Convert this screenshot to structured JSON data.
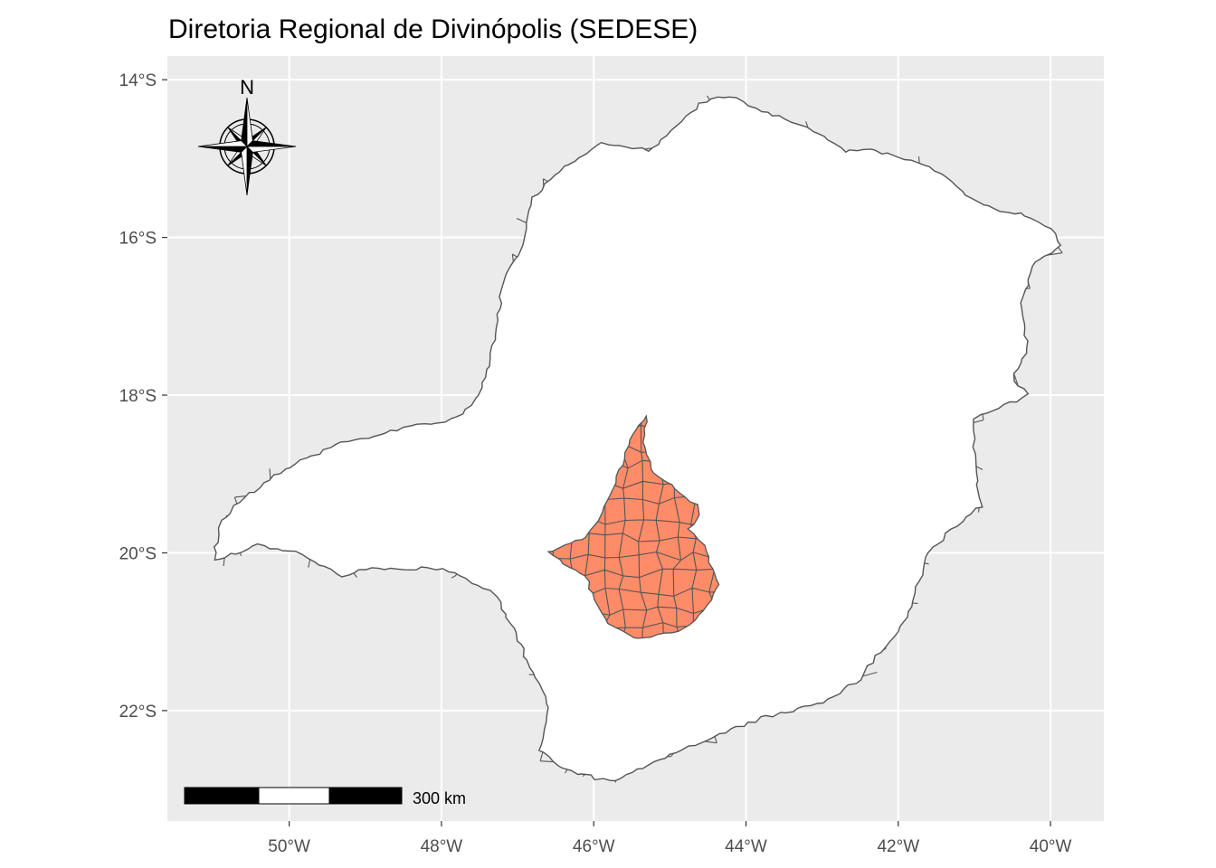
{
  "title": "Diretoria Regional de Divinópolis (SEDESE)",
  "colors": {
    "panel_background": "#EBEBEB",
    "grid": "#FFFFFF",
    "boundary": "#555555",
    "municipality_fill": "#FFFFFF",
    "highlight_fill": "#FF8C69",
    "tick_text": "#4D4D4D"
  },
  "x_axis": {
    "ticks": [
      {
        "value": -50,
        "label": "50°W"
      },
      {
        "value": -48,
        "label": "48°W"
      },
      {
        "value": -46,
        "label": "46°W"
      },
      {
        "value": -44,
        "label": "44°W"
      },
      {
        "value": -42,
        "label": "42°W"
      },
      {
        "value": -40,
        "label": "40°W"
      }
    ],
    "range": [
      -51.6,
      -39.3
    ]
  },
  "y_axis": {
    "ticks": [
      {
        "value": -14,
        "label": "14°S"
      },
      {
        "value": -16,
        "label": "16°S"
      },
      {
        "value": -18,
        "label": "18°S"
      },
      {
        "value": -20,
        "label": "20°S"
      },
      {
        "value": -22,
        "label": "22°S"
      }
    ],
    "range": [
      -23.4,
      -13.7
    ]
  },
  "state_outline": [
    [
      -44.2,
      -14.2
    ],
    [
      -43.8,
      -14.4
    ],
    [
      -43.2,
      -14.6
    ],
    [
      -42.7,
      -14.9
    ],
    [
      -42.3,
      -14.9
    ],
    [
      -41.6,
      -15.1
    ],
    [
      -41.3,
      -15.3
    ],
    [
      -40.9,
      -15.6
    ],
    [
      -40.4,
      -15.7
    ],
    [
      -40.0,
      -15.9
    ],
    [
      -39.85,
      -16.1
    ],
    [
      -40.2,
      -16.3
    ],
    [
      -40.4,
      -16.9
    ],
    [
      -40.3,
      -17.4
    ],
    [
      -40.5,
      -17.8
    ],
    [
      -40.3,
      -18.0
    ],
    [
      -41.0,
      -18.3
    ],
    [
      -41.0,
      -18.9
    ],
    [
      -40.9,
      -19.4
    ],
    [
      -41.3,
      -19.7
    ],
    [
      -41.6,
      -20.0
    ],
    [
      -41.8,
      -20.6
    ],
    [
      -42.0,
      -21.0
    ],
    [
      -42.3,
      -21.3
    ],
    [
      -42.5,
      -21.6
    ],
    [
      -43.0,
      -21.9
    ],
    [
      -43.8,
      -22.1
    ],
    [
      -44.6,
      -22.4
    ],
    [
      -45.3,
      -22.7
    ],
    [
      -45.8,
      -22.9
    ],
    [
      -46.4,
      -22.75
    ],
    [
      -46.7,
      -22.5
    ],
    [
      -46.6,
      -21.9
    ],
    [
      -46.9,
      -21.3
    ],
    [
      -47.1,
      -20.9
    ],
    [
      -47.3,
      -20.5
    ],
    [
      -48.0,
      -20.2
    ],
    [
      -49.0,
      -20.2
    ],
    [
      -49.3,
      -20.3
    ],
    [
      -49.9,
      -20.0
    ],
    [
      -50.4,
      -19.9
    ],
    [
      -51.0,
      -20.1
    ],
    [
      -50.9,
      -19.6
    ],
    [
      -50.6,
      -19.3
    ],
    [
      -50.0,
      -18.9
    ],
    [
      -49.3,
      -18.6
    ],
    [
      -48.4,
      -18.4
    ],
    [
      -47.8,
      -18.3
    ],
    [
      -47.5,
      -18.0
    ],
    [
      -47.3,
      -17.3
    ],
    [
      -47.2,
      -16.6
    ],
    [
      -46.9,
      -16.0
    ],
    [
      -46.8,
      -15.5
    ],
    [
      -46.4,
      -15.1
    ],
    [
      -45.9,
      -14.8
    ],
    [
      -45.3,
      -14.9
    ],
    [
      -44.9,
      -14.6
    ],
    [
      -44.6,
      -14.3
    ]
  ],
  "highlight_region": [
    [
      -45.3,
      -18.25
    ],
    [
      -45.35,
      -18.6
    ],
    [
      -45.2,
      -19.0
    ],
    [
      -45.05,
      -19.1
    ],
    [
      -44.8,
      -19.3
    ],
    [
      -44.65,
      -19.4
    ],
    [
      -44.6,
      -19.5
    ],
    [
      -44.75,
      -19.7
    ],
    [
      -44.55,
      -19.9
    ],
    [
      -44.45,
      -20.2
    ],
    [
      -44.35,
      -20.4
    ],
    [
      -44.45,
      -20.6
    ],
    [
      -44.6,
      -20.8
    ],
    [
      -44.9,
      -21.0
    ],
    [
      -45.4,
      -21.1
    ],
    [
      -45.8,
      -20.9
    ],
    [
      -46.0,
      -20.6
    ],
    [
      -46.1,
      -20.3
    ],
    [
      -46.6,
      -20.0
    ],
    [
      -46.1,
      -19.8
    ],
    [
      -45.9,
      -19.5
    ],
    [
      -45.75,
      -19.2
    ],
    [
      -45.6,
      -18.8
    ],
    [
      -45.5,
      -18.5
    ]
  ],
  "scale_bar": {
    "label": "300 km"
  },
  "north_arrow": {
    "label": "N"
  }
}
